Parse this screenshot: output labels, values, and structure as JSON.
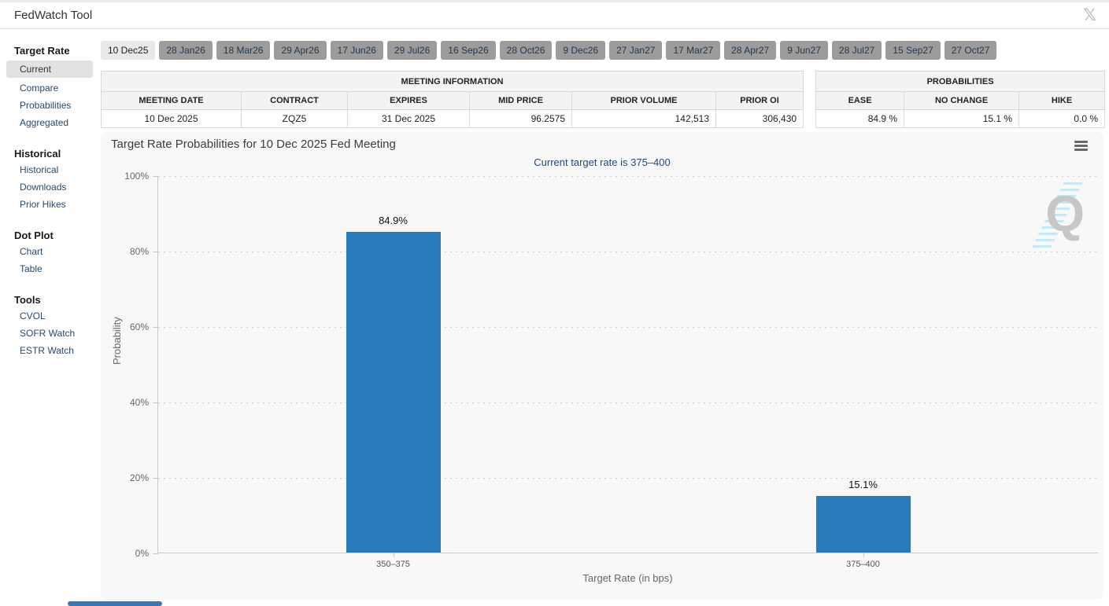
{
  "window": {
    "title": "FedWatch Tool",
    "x_icon": "𝕏"
  },
  "sidebar": {
    "sections": [
      {
        "header": "Target Rate",
        "items": [
          {
            "label": "Current",
            "selected": true
          },
          {
            "label": "Compare"
          },
          {
            "label": "Probabilities"
          },
          {
            "label": "Aggregated"
          }
        ]
      },
      {
        "header": "Historical",
        "items": [
          {
            "label": "Historical"
          },
          {
            "label": "Downloads"
          },
          {
            "label": "Prior Hikes"
          }
        ]
      },
      {
        "header": "Dot Plot",
        "items": [
          {
            "label": "Chart"
          },
          {
            "label": "Table"
          }
        ]
      },
      {
        "header": "Tools",
        "items": [
          {
            "label": "CVOL"
          },
          {
            "label": "SOFR Watch"
          },
          {
            "label": "ESTR Watch"
          }
        ]
      }
    ]
  },
  "date_tabs": [
    {
      "label": "10 Dec25",
      "selected": true
    },
    {
      "label": "28 Jan26"
    },
    {
      "label": "18 Mar26"
    },
    {
      "label": "29 Apr26"
    },
    {
      "label": "17 Jun26"
    },
    {
      "label": "29 Jul26"
    },
    {
      "label": "16 Sep26"
    },
    {
      "label": "28 Oct26"
    },
    {
      "label": "9 Dec26"
    },
    {
      "label": "27 Jan27"
    },
    {
      "label": "17 Mar27"
    },
    {
      "label": "28 Apr27"
    },
    {
      "label": "9 Jun27"
    },
    {
      "label": "28 Jul27"
    },
    {
      "label": "15 Sep27"
    },
    {
      "label": "27 Oct27"
    }
  ],
  "meeting_info": {
    "title": "MEETING INFORMATION",
    "columns": [
      "MEETING DATE",
      "CONTRACT",
      "EXPIRES",
      "MID PRICE",
      "PRIOR VOLUME",
      "PRIOR OI"
    ],
    "values": [
      "10 Dec 2025",
      "ZQZ5",
      "31 Dec 2025",
      "96.2575",
      "142,513",
      "306,430"
    ]
  },
  "probabilities": {
    "title": "PROBABILITIES",
    "columns": [
      "EASE",
      "NO CHANGE",
      "HIKE"
    ],
    "values": [
      "84.9 %",
      "15.1 %",
      "0.0 %"
    ]
  },
  "chart_data": {
    "type": "bar",
    "title": "Target Rate Probabilities for 10 Dec 2025 Fed Meeting",
    "subtitle": "Current target rate is 375–400",
    "categories": [
      "350–375",
      "375–400"
    ],
    "values": [
      84.9,
      15.1
    ],
    "value_labels": [
      "84.9%",
      "15.1%"
    ],
    "xlabel": "Target Rate (in bps)",
    "ylabel": "Probability",
    "ylim": [
      0,
      100
    ],
    "yticks": [
      "100%",
      "80%",
      "60%",
      "40%",
      "20%",
      "0%"
    ],
    "grid": "dotted horizontal gridlines",
    "legend": "none",
    "bar_color": "#2a7ab9"
  },
  "colors": {
    "bar": "#2a7ab9",
    "subtitle_text": "#264a73",
    "tab_active_bg": "#e9e9e9",
    "tab_inactive_bg": "#9c9c9c",
    "selected_nav_bg": "#e2e2e2",
    "scrollbar_thumb": "#3d76b2",
    "chart_bg": "#f8f8f8"
  }
}
